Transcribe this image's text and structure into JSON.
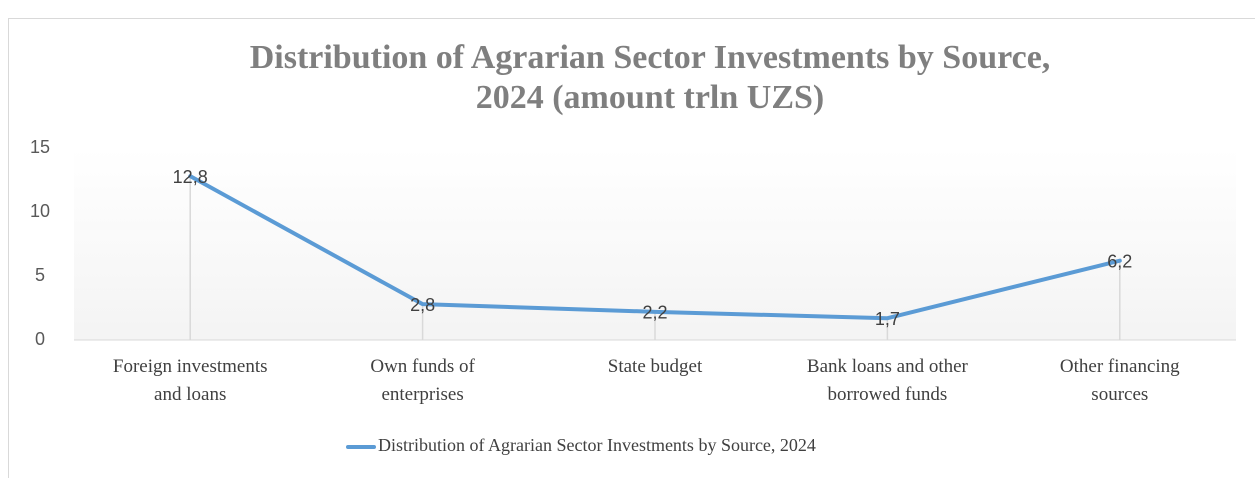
{
  "chart_data": {
    "type": "line",
    "title": "Distribution of Agrarian Sector Investments by Source, 2024 (amount trln UZS)",
    "categories": [
      "Foreign investments and loans",
      "Own funds of enterprises",
      "State budget",
      "Bank loans and other borrowed funds",
      "Other financing sources"
    ],
    "series": [
      {
        "name": "Distribution of Agrarian Sector Investments by Source, 2024",
        "color": "#5b9bd5",
        "values": [
          12.8,
          2.8,
          2.2,
          1.7,
          6.2
        ],
        "value_labels": [
          "12,8",
          "2,8",
          "2,2",
          "1,7",
          "6,2"
        ]
      }
    ],
    "ylim": [
      0,
      15
    ],
    "yticks": [
      0,
      5,
      10,
      15
    ],
    "legend": "bottom",
    "drop_lines": true
  }
}
